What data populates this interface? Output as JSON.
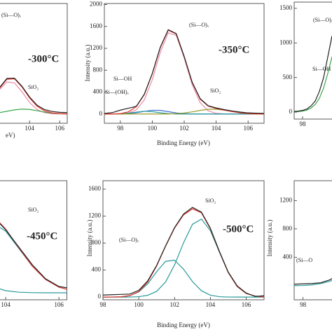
{
  "chart_data": [
    {
      "type": "line",
      "x_label": "eV)",
      "x": [
        101,
        101.5,
        102,
        102.5,
        103,
        103.5,
        104,
        104.5,
        105,
        105.5,
        106,
        106.5
      ],
      "series": [
        {
          "color": "#e889a8",
          "values": [
            101,
            247,
            443,
            586,
            568,
            404,
            211,
            81,
            23,
            5,
            1,
            0
          ]
        },
        {
          "color": "#3aa64a",
          "values": [
            3,
            10,
            25,
            49,
            75,
            89,
            83,
            60,
            34,
            15,
            5,
            1
          ]
        },
        {
          "color": "#e8322b",
          "values": [
            104,
            257,
            468,
            635,
            643,
            493,
            294,
            141,
            57,
            20,
            6,
            1
          ]
        },
        {
          "color": "#222222",
          "values": [
            120,
            270,
            480,
            650,
            655,
            505,
            310,
            160,
            80,
            45,
            30,
            25
          ]
        }
      ],
      "xlim": [
        97,
        106.5
      ],
      "ylim": [
        -170,
        2020
      ],
      "xticks": [
        104,
        106
      ],
      "yticks": [],
      "annotations": [
        "(Si—O)ₓ",
        "-300°C",
        "SiO₂"
      ]
    },
    {
      "type": "line",
      "x_label": "Binding Energy (eV)",
      "y_label": "Intensity (a.u.)",
      "x": [
        97,
        97.5,
        98,
        98.5,
        99,
        99.5,
        100,
        100.5,
        101,
        101.5,
        102,
        102.5,
        103,
        103.5,
        104,
        104.5,
        105,
        105.5,
        106,
        106.5,
        107
      ],
      "series": [
        {
          "color": "#e889a8",
          "values": [
            0,
            0,
            3,
            17,
            76,
            256,
            625,
            1124,
            1483,
            1438,
            1024,
            535,
            206,
            58,
            12,
            2,
            0,
            0,
            0,
            0,
            0
          ]
        },
        {
          "color": "#3b6fd1",
          "values": [
            0,
            0,
            0,
            7,
            23,
            48,
            68,
            65,
            43,
            19,
            6,
            0,
            0,
            0,
            0,
            0,
            0,
            0,
            0,
            0,
            0
          ]
        },
        {
          "color": "#2a9a9a",
          "values": [
            0,
            0,
            4,
            15,
            34,
            50,
            42,
            22,
            7,
            0,
            0,
            0,
            0,
            0,
            0,
            0,
            0,
            0,
            0,
            0,
            0
          ]
        },
        {
          "color": "#9a9a2a",
          "values": [
            0,
            0,
            0,
            0,
            0,
            0,
            0,
            0,
            0,
            6,
            18,
            39,
            65,
            86,
            88,
            70,
            44,
            21,
            8,
            0,
            0
          ]
        },
        {
          "color": "#e8322b",
          "values": [
            0,
            0,
            7,
            39,
            133,
            354,
            735,
            1211,
            1533,
            1463,
            1048,
            574,
            271,
            144,
            100,
            72,
            44,
            21,
            8,
            2,
            0
          ]
        },
        {
          "color": "#222222",
          "values": [
            10,
            25,
            70,
            105,
            140,
            360,
            740,
            1220,
            1540,
            1470,
            1050,
            580,
            280,
            150,
            110,
            80,
            55,
            35,
            20,
            15,
            12
          ]
        }
      ],
      "xlim": [
        97,
        107
      ],
      "ylim": [
        -170,
        2020
      ],
      "xticks": [
        98,
        100,
        102,
        104,
        106
      ],
      "yticks": [
        0,
        400,
        800,
        1200,
        1600,
        2000
      ],
      "annotations": [
        "(Si—O)ₓ",
        "-350°C",
        "Si—OH",
        "Si—(OH)ₓ",
        "SiO₂"
      ]
    },
    {
      "type": "line",
      "x": [
        97,
        97.5,
        98,
        98.5,
        99,
        99.5,
        100,
        100.5,
        101,
        101.5
      ],
      "series": [
        {
          "color": "#3aa64a",
          "values": [
            5,
            8,
            15,
            30,
            60,
            110,
            200,
            350,
            560,
            800
          ]
        },
        {
          "color": "#222222",
          "values": [
            10,
            15,
            25,
            45,
            90,
            160,
            300,
            500,
            800,
            1100
          ]
        }
      ],
      "xlim": [
        97,
        107
      ],
      "ylim": [
        -100,
        1590
      ],
      "xticks": [
        98
      ],
      "yticks": [
        0,
        500,
        1000,
        1500
      ],
      "annotations": [
        "(Si—O)ₓ",
        "Si—OH"
      ]
    },
    {
      "type": "line",
      "x": [
        103,
        103.5,
        104,
        104.5,
        105,
        105.5,
        106,
        106.5
      ],
      "series": [
        {
          "color": "#2a9a9a",
          "values": [
            960,
            1000,
            880,
            630,
            380,
            190,
            80,
            30
          ]
        },
        {
          "color": "#2a9a9a",
          "values": [
            180,
            90,
            30,
            8,
            2,
            0,
            0,
            0
          ]
        },
        {
          "color": "#e8322b",
          "values": [
            1160,
            1110,
            910,
            640,
            380,
            190,
            80,
            30
          ]
        },
        {
          "color": "#222222",
          "values": [
            1150,
            1100,
            900,
            650,
            400,
            200,
            90,
            60
          ]
        }
      ],
      "xlim": [
        97,
        106.3
      ],
      "ylim": [
        -100,
        1600
      ],
      "xticks": [
        104,
        106
      ],
      "yticks": [],
      "annotations": [
        "SiO₂",
        "-450°C"
      ]
    },
    {
      "type": "line",
      "x_label": "Binding Energy (eV)",
      "y_label": "Intensity (a.u.)",
      "x": [
        98,
        98.5,
        99,
        99.5,
        100,
        100.5,
        101,
        101.5,
        102,
        102.5,
        103,
        103.5,
        104,
        104.5,
        105,
        105.5,
        106,
        106.5,
        107
      ],
      "series": [
        {
          "color": "#2a9a9a",
          "values": [
            0,
            1,
            4,
            21,
            76,
            197,
            377,
            530,
            546,
            414,
            230,
            94,
            28,
            6,
            1,
            0,
            0,
            0,
            0
          ]
        },
        {
          "color": "#2a9a9a",
          "values": [
            0,
            0,
            0,
            1,
            6,
            26,
            85,
            225,
            477,
            804,
            1079,
            1155,
            985,
            670,
            363,
            157,
            54,
            15,
            3
          ]
        },
        {
          "color": "#e8322b",
          "values": [
            0,
            1,
            4,
            22,
            82,
            223,
            462,
            755,
            1023,
            1218,
            1309,
            1249,
            1013,
            676,
            364,
            157,
            54,
            15,
            3
          ]
        },
        {
          "color": "#222222",
          "values": [
            30,
            35,
            40,
            45,
            100,
            240,
            470,
            760,
            1030,
            1230,
            1330,
            1260,
            1020,
            680,
            370,
            165,
            60,
            10,
            20
          ]
        }
      ],
      "xlim": [
        98,
        107
      ],
      "ylim": [
        -40,
        1725
      ],
      "xticks": [
        98,
        100,
        102,
        104,
        106
      ],
      "yticks": [
        0,
        400,
        800,
        1200,
        1600
      ],
      "annotations": [
        "SiO₂",
        "(Si—O)ₓ",
        "-500°C"
      ]
    },
    {
      "type": "line",
      "y_label": "Intensity (a.u.)",
      "x": [
        97.5,
        98,
        98.5,
        99,
        99.5,
        100
      ],
      "series": [
        {
          "color": "#2a9a9a",
          "values": [
            0,
            2,
            10,
            30,
            60,
            110
          ]
        },
        {
          "color": "#222222",
          "values": [
            20,
            25,
            30,
            40,
            80,
            150
          ]
        }
      ],
      "xlim": [
        97.5,
        107
      ],
      "ylim": [
        -200,
        1480
      ],
      "xticks": [
        98
      ],
      "yticks": [
        400,
        800,
        1200
      ],
      "annotations": [
        "(Si—O"
      ]
    }
  ]
}
